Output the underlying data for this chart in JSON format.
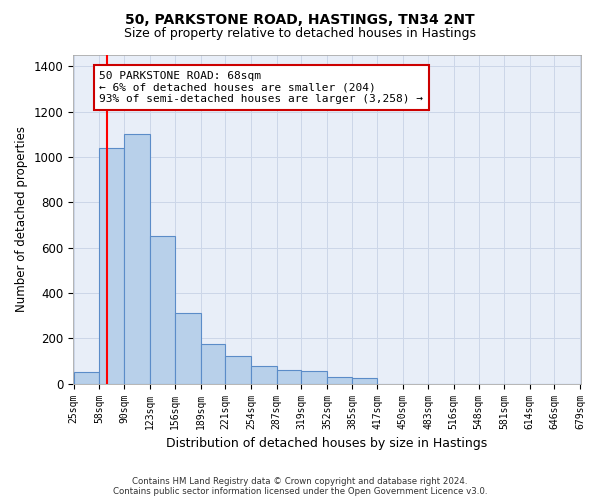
{
  "title1": "50, PARKSTONE ROAD, HASTINGS, TN34 2NT",
  "title2": "Size of property relative to detached houses in Hastings",
  "xlabel": "Distribution of detached houses by size in Hastings",
  "ylabel": "Number of detached properties",
  "footer1": "Contains HM Land Registry data © Crown copyright and database right 2024.",
  "footer2": "Contains public sector information licensed under the Open Government Licence v3.0.",
  "annotation_title": "50 PARKSTONE ROAD: 68sqm",
  "annotation_line1": "← 6% of detached houses are smaller (204)",
  "annotation_line2": "93% of semi-detached houses are larger (3,258) →",
  "bins": [
    25,
    58,
    90,
    123,
    156,
    189,
    221,
    254,
    287,
    319,
    352,
    385,
    417,
    450,
    483,
    516,
    548,
    581,
    614,
    646,
    679
  ],
  "values": [
    50,
    1040,
    1100,
    650,
    310,
    175,
    120,
    80,
    60,
    55,
    30,
    25,
    0,
    0,
    0,
    0,
    0,
    0,
    0,
    0
  ],
  "bar_color": "#b8d0ea",
  "bar_edge_color": "#5b8cc8",
  "bar_linewidth": 0.8,
  "grid_color": "#ccd6e8",
  "bg_color": "#e8eef8",
  "red_line_x": 68,
  "annotation_box_facecolor": "#ffffff",
  "annotation_box_edgecolor": "#cc0000",
  "ylim": [
    0,
    1450
  ],
  "yticks": [
    0,
    200,
    400,
    600,
    800,
    1000,
    1200,
    1400
  ],
  "title1_fontsize": 10,
  "title2_fontsize": 9,
  "ylabel_fontsize": 8.5,
  "xlabel_fontsize": 9,
  "tick_fontsize": 7.5,
  "annot_fontsize": 8
}
